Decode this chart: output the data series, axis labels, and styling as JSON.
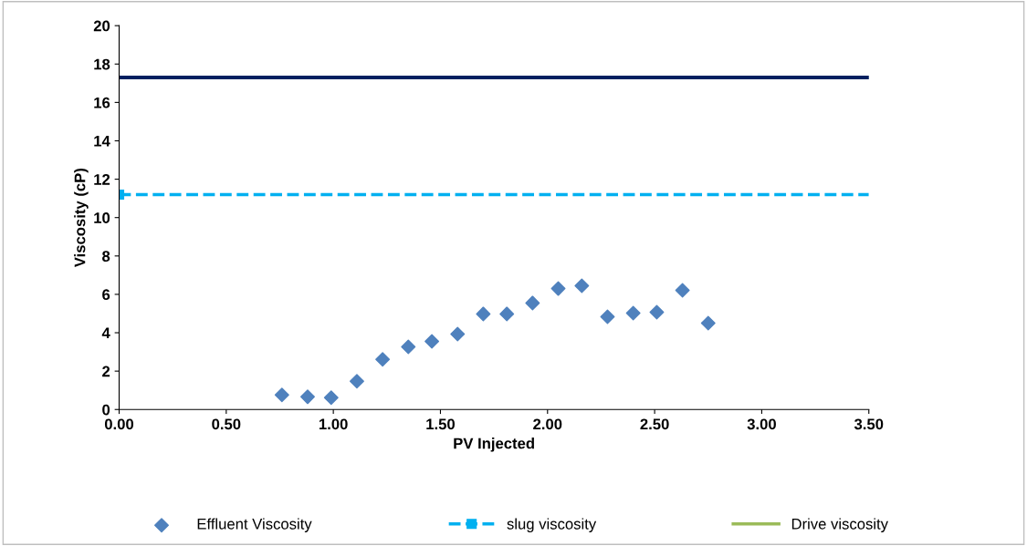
{
  "chart_data": {
    "type": "scatter",
    "xlabel": "PV Injected",
    "ylabel": "Viscosity (cP)",
    "xlim": [
      0,
      3.5
    ],
    "xticks": [
      {
        "value": 0,
        "label": "0.00"
      },
      {
        "value": 0.5,
        "label": "0.50"
      },
      {
        "value": 1,
        "label": "1.00"
      },
      {
        "value": 1.5,
        "label": "1.50"
      },
      {
        "value": 2,
        "label": "2.00"
      },
      {
        "value": 2.5,
        "label": "2.50"
      },
      {
        "value": 3,
        "label": "3.00"
      },
      {
        "value": 3.5,
        "label": "3.50"
      }
    ],
    "ylim": [
      0,
      20
    ],
    "yticks": [
      0,
      2,
      4,
      6,
      8,
      10,
      12,
      14,
      16,
      18,
      20
    ],
    "grid": false,
    "legend": "bottom",
    "series": [
      {
        "name": "Effluent Viscosity",
        "color": "#4f81bd",
        "marker": "diamond",
        "x": [
          0.76,
          0.88,
          0.99,
          1.11,
          1.23,
          1.35,
          1.46,
          1.58,
          1.7,
          1.81,
          1.93,
          2.05,
          2.16,
          2.28,
          2.4,
          2.51,
          2.63,
          2.75
        ],
        "values": [
          0.76,
          0.66,
          0.62,
          1.47,
          2.61,
          3.27,
          3.55,
          3.93,
          4.98,
          4.98,
          5.55,
          6.3,
          6.45,
          4.83,
          5.02,
          5.07,
          6.21,
          4.5
        ]
      },
      {
        "name": "slug viscosity",
        "type": "line",
        "color": "#00b0f0",
        "marker": "square",
        "line_style": "dashed",
        "x": [
          0,
          3.5
        ],
        "values": [
          11.2,
          11.2
        ]
      },
      {
        "name": "Drive viscosity",
        "type": "line",
        "color": "#9bbb59",
        "line_style": "solid"
      }
    ],
    "ref_lines": [
      {
        "axis": "y",
        "value": 17.3,
        "color": "#002060",
        "line_style": "solid"
      }
    ]
  }
}
